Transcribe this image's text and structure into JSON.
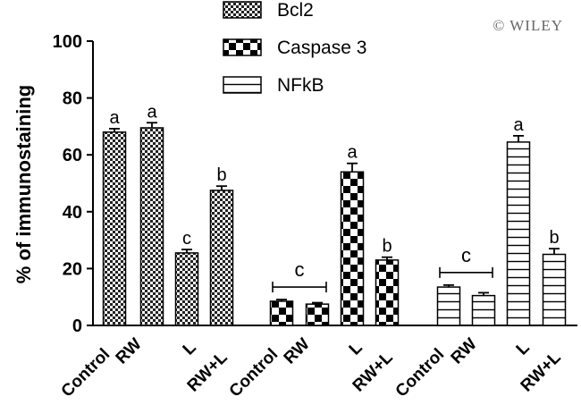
{
  "watermark": "© WILEY",
  "chart_data": {
    "type": "bar",
    "ylabel": "% of immunostaining",
    "ylim": [
      0,
      100
    ],
    "yticks": [
      0,
      20,
      40,
      60,
      80,
      100
    ],
    "categories": [
      "Control",
      "RW",
      "L",
      "RW+L"
    ],
    "legend": {
      "placement": "top-center"
    },
    "grid": false,
    "series": [
      {
        "name": "Bcl2",
        "pattern": "fine-checker",
        "values": [
          68,
          69.5,
          25.5,
          47.5
        ],
        "errors": [
          1.2,
          1.8,
          1.2,
          1.5
        ],
        "sig_labels": [
          "a",
          "a",
          "c",
          "b"
        ]
      },
      {
        "name": "Caspase 3",
        "pattern": "coarse-checker",
        "values": [
          8.5,
          7.5,
          54,
          23
        ],
        "errors": [
          0.6,
          0.5,
          3.0,
          1.0
        ],
        "sig_labels": [
          "",
          "",
          "a",
          "b"
        ],
        "bracket": {
          "from": 0,
          "to": 1,
          "label": "c"
        }
      },
      {
        "name": "NFkB",
        "pattern": "horizontal-lines",
        "values": [
          13.5,
          10.5,
          64.5,
          25
        ],
        "errors": [
          0.7,
          1.0,
          2.2,
          2.0
        ],
        "sig_labels": [
          "",
          "",
          "a",
          "b"
        ],
        "bracket": {
          "from": 0,
          "to": 1,
          "label": "c"
        }
      }
    ]
  }
}
